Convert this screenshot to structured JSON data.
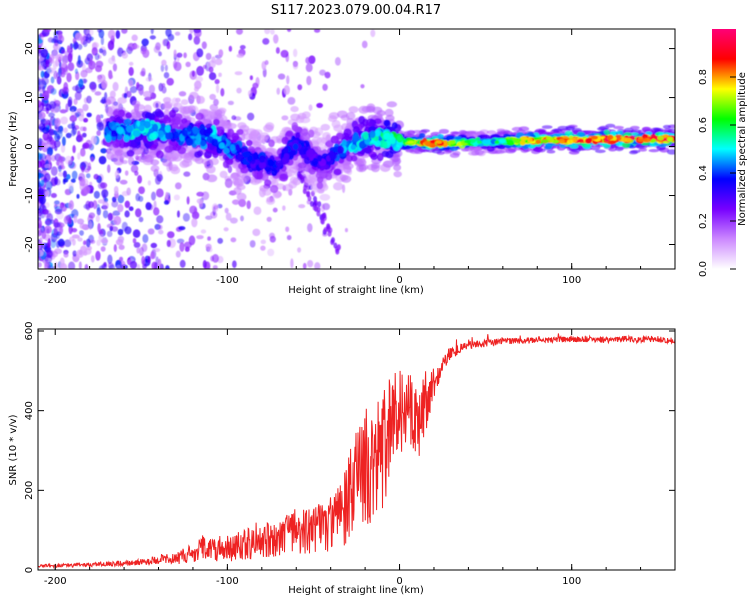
{
  "title": "S117.2023.079.00.04.R17",
  "chart_data": [
    {
      "type": "heatmap",
      "xlabel": "Height of straight line (km)",
      "ylabel": "Frequency (Hz)",
      "xlim": [
        -210,
        160
      ],
      "ylim": [
        -25,
        24
      ],
      "x_ticks": [
        -200,
        -100,
        0,
        100
      ],
      "y_ticks": [
        -20,
        -10,
        0,
        10,
        20
      ],
      "colorbar": {
        "label": "Normalized spectral amplitude",
        "range": [
          0,
          1
        ],
        "ticks": [
          0.0,
          0.2,
          0.4,
          0.6,
          0.8
        ],
        "colors": [
          "#ffffff",
          "#cc88ff",
          "#7700ff",
          "#0000ff",
          "#00ffff",
          "#00ff00",
          "#ffff00",
          "#ff0000",
          "#ff0077"
        ]
      },
      "ridge": [
        {
          "x": -170,
          "y": 3,
          "amp": 0.4
        },
        {
          "x": -150,
          "y": 3.5,
          "amp": 0.5
        },
        {
          "x": -130,
          "y": 2.5,
          "amp": 0.4
        },
        {
          "x": -110,
          "y": 2,
          "amp": 0.45
        },
        {
          "x": -95,
          "y": -1,
          "amp": 0.4
        },
        {
          "x": -85,
          "y": -3,
          "amp": 0.35
        },
        {
          "x": -70,
          "y": -4,
          "amp": 0.35
        },
        {
          "x": -60,
          "y": 1,
          "amp": 0.35
        },
        {
          "x": -45,
          "y": -4,
          "amp": 0.3
        },
        {
          "x": -30,
          "y": 0,
          "amp": 0.45
        },
        {
          "x": -15,
          "y": 2,
          "amp": 0.5
        },
        {
          "x": 0,
          "y": 1,
          "amp": 0.55
        },
        {
          "x": 20,
          "y": 0.6,
          "amp": 0.85
        },
        {
          "x": 50,
          "y": 0.9,
          "amp": 0.45
        },
        {
          "x": 70,
          "y": 1.2,
          "amp": 0.75
        },
        {
          "x": 100,
          "y": 1.4,
          "amp": 0.85
        },
        {
          "x": 160,
          "y": 1.5,
          "amp": 0.85
        }
      ]
    },
    {
      "type": "line",
      "xlabel": "Height of straight line (km)",
      "ylabel": "SNR (10 * v/v)",
      "xlim": [
        -210,
        160
      ],
      "ylim": [
        0,
        605
      ],
      "x_ticks": [
        -200,
        -100,
        0,
        100
      ],
      "y_ticks": [
        0,
        200,
        400,
        600
      ],
      "series": [
        {
          "color": "#ee2222",
          "x": [
            -210,
            -190,
            -170,
            -150,
            -140,
            -130,
            -120,
            -114,
            -110,
            -100,
            -90,
            -80,
            -70,
            -60,
            -50,
            -40,
            -35,
            -30,
            -25,
            -20,
            -15,
            -10,
            -5,
            0,
            5,
            10,
            15,
            20,
            25,
            30,
            35,
            40,
            50,
            60,
            70,
            80,
            90,
            100,
            110,
            120,
            130,
            140,
            150,
            160
          ],
          "y": [
            10,
            12,
            15,
            20,
            25,
            30,
            40,
            60,
            50,
            55,
            65,
            75,
            85,
            90,
            100,
            115,
            140,
            170,
            220,
            260,
            270,
            300,
            350,
            380,
            400,
            360,
            420,
            470,
            520,
            545,
            555,
            565,
            570,
            575,
            575,
            578,
            578,
            580,
            580,
            578,
            580,
            578,
            580,
            575
          ],
          "noise": [
            4,
            5,
            6,
            8,
            10,
            15,
            25,
            30,
            30,
            35,
            40,
            45,
            50,
            55,
            60,
            70,
            80,
            110,
            140,
            150,
            160,
            150,
            140,
            120,
            110,
            100,
            80,
            40,
            25,
            15,
            12,
            10,
            10,
            8,
            8,
            8,
            8,
            8,
            8,
            8,
            8,
            8,
            8,
            8
          ]
        }
      ]
    }
  ]
}
